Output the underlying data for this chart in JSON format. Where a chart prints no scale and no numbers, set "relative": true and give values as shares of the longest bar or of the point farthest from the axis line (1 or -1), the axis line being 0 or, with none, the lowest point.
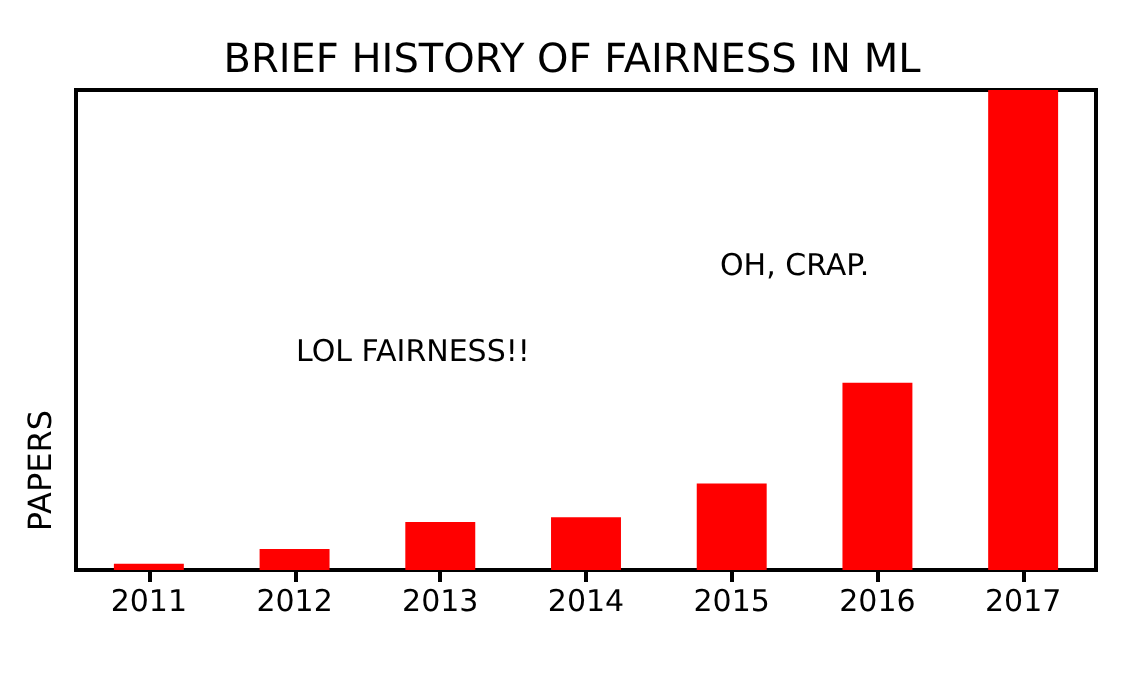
{
  "chart_data": {
    "type": "bar",
    "title": "BRIEF HISTORY OF FAIRNESS IN ML",
    "ylabel": "PAPERS",
    "categories": [
      "2011",
      "2012",
      "2013",
      "2014",
      "2015",
      "2016",
      "2017"
    ],
    "values": [
      0.013,
      0.044,
      0.1,
      0.11,
      0.18,
      0.39,
      1
    ],
    "color": "#ff0000",
    "relative": true,
    "annotations": [
      "LOL FAIRNESS!!",
      "OH, CRAP."
    ]
  }
}
